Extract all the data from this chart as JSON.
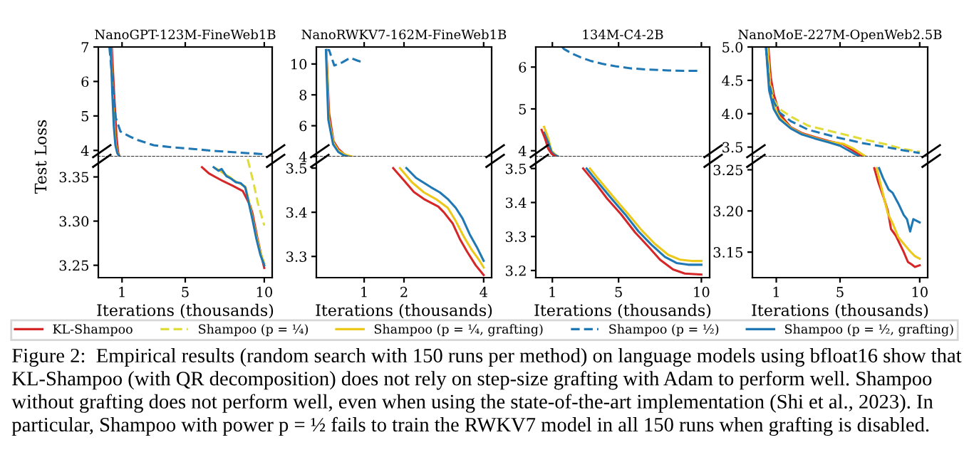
{
  "chart_data": [
    {
      "type": "line",
      "title": "NanoGPT-123M-FineWeb1B",
      "xlim": [
        -0.5,
        10.5
      ],
      "ylim": [
        3.82,
        7
      ],
      "xticks": [
        1,
        5,
        10
      ],
      "yticks": [
        4,
        5,
        6,
        7
      ],
      "tick_labels": "y",
      "series": [
        {
          "color": "#d62728",
          "x": [
            0.35,
            0.45,
            0.55,
            0.65,
            0.75,
            0.85
          ],
          "values": [
            7,
            6.1,
            5.2,
            4.4,
            3.95,
            3.82
          ]
        },
        {
          "color": "#ecc81a",
          "x": [
            0.3,
            0.4,
            0.5,
            0.6,
            0.7,
            0.85
          ],
          "values": [
            7,
            5.8,
            4.8,
            4.2,
            3.95,
            3.82
          ]
        },
        {
          "color": "#1f77b4",
          "x": [
            0.28,
            0.38,
            0.48,
            0.58,
            0.7,
            0.85
          ],
          "values": [
            7,
            5.7,
            4.7,
            4.15,
            3.92,
            3.82
          ]
        },
        {
          "color": "#1f77b4",
          "line_style": "dashed",
          "x": [
            0.2,
            0.4,
            0.6,
            0.9,
            1.5,
            2,
            3,
            4,
            5,
            6,
            7,
            8,
            9,
            10
          ],
          "values": [
            7,
            6,
            4.95,
            4.55,
            4.4,
            4.3,
            4.15,
            4.1,
            4.06,
            4.02,
            3.98,
            3.95,
            3.92,
            3.89
          ]
        }
      ]
    },
    {
      "type": "line",
      "xlabel": "Iterations (thousands)",
      "ylabel": "Test Loss",
      "xlim": [
        -0.5,
        10.5
      ],
      "ylim": [
        3.236,
        3.373
      ],
      "xticks": [
        1,
        5,
        10
      ],
      "yticks": [
        {
          "value": 3.25,
          "label": "3.25"
        },
        {
          "value": 3.3,
          "label": "3.30"
        },
        {
          "value": 3.35,
          "label": "3.35"
        }
      ],
      "series": [
        {
          "color": "#d62728",
          "x": [
            6.06,
            6.5,
            7.0,
            7.42,
            8.0,
            8.64,
            9.1,
            9.25,
            9.55,
            9.8,
            10
          ],
          "values": [
            3.361,
            3.354,
            3.349,
            3.345,
            3.34,
            3.334,
            3.318,
            3.309,
            3.282,
            3.262,
            3.247
          ]
        },
        {
          "color": "#e0dc3a",
          "line_style": "dashed",
          "x": [
            8.95,
            9.3,
            9.6,
            10
          ],
          "values": [
            3.37,
            3.345,
            3.32,
            3.295
          ]
        },
        {
          "color": "#ecc81a",
          "x": [
            6.9,
            7.2,
            7.5,
            7.8,
            8.0,
            8.4,
            8.8,
            9.0,
            9.25,
            9.5,
            9.75,
            10
          ],
          "values": [
            3.36,
            3.357,
            3.353,
            3.35,
            3.347,
            3.343,
            3.339,
            3.325,
            3.304,
            3.283,
            3.265,
            3.252
          ]
        },
        {
          "color": "#1f77b4",
          "x": [
            6.8,
            7.1,
            7.3,
            7.6,
            7.9,
            8.2,
            8.5,
            8.8,
            9.0,
            9.25,
            9.5,
            9.75,
            10
          ],
          "values": [
            3.361,
            3.357,
            3.359,
            3.351,
            3.348,
            3.344,
            3.343,
            3.338,
            3.322,
            3.302,
            3.28,
            3.262,
            3.25
          ]
        }
      ]
    },
    {
      "type": "line",
      "title": "NanoRWKV7-162M-FineWeb1B",
      "xlim": [
        -0.2,
        4.2
      ],
      "ylim": [
        4,
        11.1
      ],
      "xticks": [
        1,
        2,
        4
      ],
      "yticks": [
        4,
        6,
        8,
        10
      ],
      "tick_labels": "y",
      "series": [
        {
          "color": "#1f77b4",
          "line_style": "dashed",
          "x": [
            0.05,
            0.12,
            0.25,
            0.45,
            0.65,
            0.85,
            1.0
          ],
          "values": [
            10.9,
            10.9,
            9.9,
            10.1,
            10.4,
            10.2,
            10.1
          ]
        },
        {
          "color": "#d62728",
          "x": [
            0.05,
            0.12,
            0.23,
            0.35,
            0.48,
            0.6
          ],
          "values": [
            10.9,
            6.8,
            5.0,
            4.5,
            4.2,
            4.0
          ]
        },
        {
          "color": "#ecc81a",
          "x": [
            0.05,
            0.11,
            0.23,
            0.35,
            0.5,
            0.7
          ],
          "values": [
            10.9,
            6.5,
            4.9,
            4.4,
            4.15,
            4.0
          ]
        },
        {
          "color": "#1f77b4",
          "x": [
            0.04,
            0.1,
            0.22,
            0.35,
            0.48,
            0.6
          ],
          "values": [
            10.9,
            6.4,
            4.8,
            4.3,
            4.1,
            4.0
          ]
        }
      ]
    },
    {
      "type": "line",
      "xlabel": "Iterations (thousands)",
      "xlim": [
        -0.2,
        4.2
      ],
      "ylim": [
        3.252,
        3.526
      ],
      "xticks": [
        1,
        2,
        4
      ],
      "yticks": [
        3.3,
        3.4,
        3.5
      ],
      "series": [
        {
          "color": "#d62728",
          "x": [
            1.73,
            2.0,
            2.25,
            2.5,
            2.86,
            3.0,
            3.22,
            3.4,
            3.59,
            3.8,
            4.0
          ],
          "values": [
            3.5,
            3.472,
            3.446,
            3.43,
            3.413,
            3.4,
            3.375,
            3.34,
            3.31,
            3.28,
            3.258
          ]
        },
        {
          "color": "#ecc81a",
          "x": [
            1.9,
            2.2,
            2.5,
            2.8,
            3.1,
            3.3,
            3.5,
            3.7,
            3.9,
            4.0
          ],
          "values": [
            3.5,
            3.468,
            3.445,
            3.43,
            3.41,
            3.38,
            3.345,
            3.315,
            3.29,
            3.275
          ]
        },
        {
          "color": "#1f77b4",
          "x": [
            2.06,
            2.3,
            2.67,
            2.9,
            3.1,
            3.3,
            3.47,
            3.65,
            3.83,
            4.0
          ],
          "values": [
            3.5,
            3.478,
            3.457,
            3.445,
            3.43,
            3.41,
            3.386,
            3.35,
            3.321,
            3.29
          ]
        }
      ]
    },
    {
      "type": "line",
      "title": "134M-C4-2B",
      "xlim": [
        0,
        10.5
      ],
      "ylim": [
        3.86,
        6.48
      ],
      "xticks": [
        1,
        5,
        10
      ],
      "yticks": [
        4,
        5,
        6
      ],
      "tick_labels": "y",
      "series": [
        {
          "color": "#1f77b4",
          "line_style": "dashed",
          "x": [
            1.6,
            1.71,
            2.2,
            2.72,
            3.3,
            4.0,
            4.8,
            5.72,
            6.8,
            8.0,
            9,
            10
          ],
          "values": [
            6.48,
            6.43,
            6.32,
            6.23,
            6.15,
            6.08,
            6.02,
            5.97,
            5.94,
            5.92,
            5.91,
            5.91
          ]
        },
        {
          "color": "#ecc81a",
          "x": [
            0.5,
            0.75,
            0.95,
            1.15,
            1.35
          ],
          "values": [
            4.57,
            4.3,
            4.0,
            3.92,
            3.86
          ]
        },
        {
          "color": "#1f77b4",
          "x": [
            0.5,
            0.75,
            0.95,
            1.15,
            1.35
          ],
          "values": [
            4.43,
            4.2,
            3.97,
            3.9,
            3.86
          ]
        },
        {
          "color": "#d62728",
          "x": [
            0.35,
            0.55,
            0.75,
            0.95,
            1.2
          ],
          "values": [
            4.5,
            4.3,
            4.05,
            3.93,
            3.86
          ]
        }
      ]
    },
    {
      "type": "line",
      "xlabel": "Iterations (thousands)",
      "xlim": [
        0,
        10.5
      ],
      "ylim": [
        3.179,
        3.535
      ],
      "xticks": [
        1,
        5,
        10
      ],
      "yticks": [
        3.2,
        3.3,
        3.4,
        3.5
      ],
      "series": [
        {
          "color": "#d62728",
          "x": [
            2.86,
            3.3,
            3.71,
            4.3,
            5.14,
            6.0,
            6.86,
            7.5,
            8.29,
            9,
            10
          ],
          "values": [
            3.5,
            3.474,
            3.45,
            3.412,
            3.366,
            3.312,
            3.267,
            3.232,
            3.203,
            3.191,
            3.188
          ]
        },
        {
          "color": "#1f77b4",
          "x": [
            3.07,
            3.5,
            4.0,
            4.6,
            5.4,
            6.2,
            7.0,
            7.8,
            8.5,
            9.2,
            10
          ],
          "values": [
            3.5,
            3.474,
            3.445,
            3.41,
            3.365,
            3.315,
            3.275,
            3.24,
            3.222,
            3.217,
            3.217
          ]
        },
        {
          "color": "#ecc81a",
          "x": [
            3.27,
            3.7,
            4.2,
            4.8,
            5.6,
            6.4,
            7.2,
            8.0,
            8.7,
            9.4,
            10
          ],
          "values": [
            3.5,
            3.474,
            3.445,
            3.41,
            3.365,
            3.318,
            3.278,
            3.246,
            3.232,
            3.228,
            3.228
          ]
        }
      ]
    },
    {
      "type": "line",
      "title": "NanoMoE-227M-OpenWeb2.5B",
      "legend": "bottom",
      "xlim": [
        -0.5,
        10.5
      ],
      "ylim": [
        3.357,
        5.0
      ],
      "xticks": [
        1,
        5,
        10
      ],
      "yticks": [
        {
          "value": 3.5,
          "label": "3.5"
        },
        {
          "value": 4,
          "label": "4.0"
        },
        {
          "value": 4.5,
          "label": "4.5"
        },
        {
          "value": 5,
          "label": "5.0"
        }
      ],
      "tick_labels": "y",
      "series": [
        {
          "name": "KL-Shampoo",
          "color": "#d62728",
          "x": [
            0.5,
            0.65,
            0.84,
            1.2,
            1.9,
            2.6,
            3.4,
            4.3,
            5.2,
            5.8,
            6.4
          ],
          "values": [
            5.0,
            4.55,
            4.29,
            4.0,
            3.8,
            3.71,
            3.65,
            3.59,
            3.54,
            3.45,
            3.36
          ]
        },
        {
          "name": "Shampoo (p = ¼)",
          "color": "#e0dc3a",
          "line_style": "dashed",
          "x": [
            0.45,
            0.6,
            0.84,
            1.2,
            1.9,
            3,
            4.9,
            6.4,
            7.9,
            9,
            10
          ],
          "values": [
            5.0,
            4.5,
            4.21,
            4.07,
            3.96,
            3.82,
            3.71,
            3.62,
            3.54,
            3.47,
            3.43
          ]
        },
        {
          "name": "Shampoo (p = ¼, grafting)",
          "color": "#ecc81a",
          "x": [
            0.45,
            0.6,
            0.84,
            1.2,
            1.9,
            2.6,
            3.4,
            4.3,
            5.2,
            5.9,
            6.6
          ],
          "values": [
            5.0,
            4.45,
            4.12,
            3.95,
            3.79,
            3.7,
            3.64,
            3.58,
            3.55,
            3.47,
            3.36
          ]
        },
        {
          "name": "Shampoo (p = ½)",
          "color": "#1f77b4",
          "line_style": "dashed",
          "x": [
            0.35,
            0.55,
            0.84,
            1.2,
            1.9,
            3,
            4.9,
            6.4,
            7.9,
            9,
            10
          ],
          "values": [
            5.0,
            4.45,
            4.18,
            4.02,
            3.89,
            3.76,
            3.64,
            3.56,
            3.5,
            3.45,
            3.41
          ]
        },
        {
          "name": "Shampoo (p = ½, grafting)",
          "color": "#1f77b4",
          "x": [
            0.35,
            0.55,
            0.84,
            1.2,
            1.9,
            2.6,
            3.4,
            4.3,
            5.0,
            5.6,
            6.2
          ],
          "values": [
            5.0,
            4.35,
            4.07,
            3.92,
            3.78,
            3.69,
            3.63,
            3.57,
            3.52,
            3.44,
            3.36
          ]
        }
      ]
    },
    {
      "type": "line",
      "xlabel": "Iterations (thousands)",
      "xlim": [
        -0.5,
        10.5
      ],
      "ylim": [
        3.119,
        3.266
      ],
      "xticks": [
        1,
        5,
        10
      ],
      "yticks": [
        {
          "value": 3.15,
          "label": "3.15"
        },
        {
          "value": 3.2,
          "label": "3.20"
        },
        {
          "value": 3.25,
          "label": "3.25"
        }
      ],
      "annotations": [
        "Figure 2:  Empirical results (random search with 150 runs per method) on language models using bfloat16 show that KL-Shampoo (with QR decomposition) does not rely on step-size grafting with Adam to perform well. Shampoo without grafting does not perform well, even when using the state-of-the-art implementation (Shi et al., 2023). In particular, Shampoo with power p = ½ fails to train the RWKV7 model in all 150 runs when grafting is disabled."
      ],
      "series": [
        {
          "color": "#d62728",
          "x": [
            7.15,
            7.4,
            7.76,
            8.0,
            8.2,
            8.5,
            8.8,
            9.0,
            9.26,
            9.5,
            9.7,
            10
          ],
          "values": [
            3.252,
            3.235,
            3.215,
            3.2,
            3.178,
            3.17,
            3.158,
            3.15,
            3.138,
            3.135,
            3.132,
            3.134
          ]
        },
        {
          "color": "#ecc81a",
          "x": [
            7.3,
            7.6,
            8.0,
            8.3,
            8.66,
            9.0,
            9.4,
            9.7,
            10
          ],
          "values": [
            3.252,
            3.228,
            3.197,
            3.185,
            3.168,
            3.16,
            3.151,
            3.145,
            3.142
          ]
        },
        {
          "color": "#1f77b4",
          "x": [
            7.45,
            7.7,
            8.05,
            8.3,
            8.66,
            9.0,
            9.2,
            9.4,
            9.6,
            9.8,
            10
          ],
          "values": [
            3.252,
            3.24,
            3.226,
            3.222,
            3.209,
            3.195,
            3.19,
            3.175,
            3.19,
            3.188,
            3.186
          ]
        }
      ]
    }
  ]
}
